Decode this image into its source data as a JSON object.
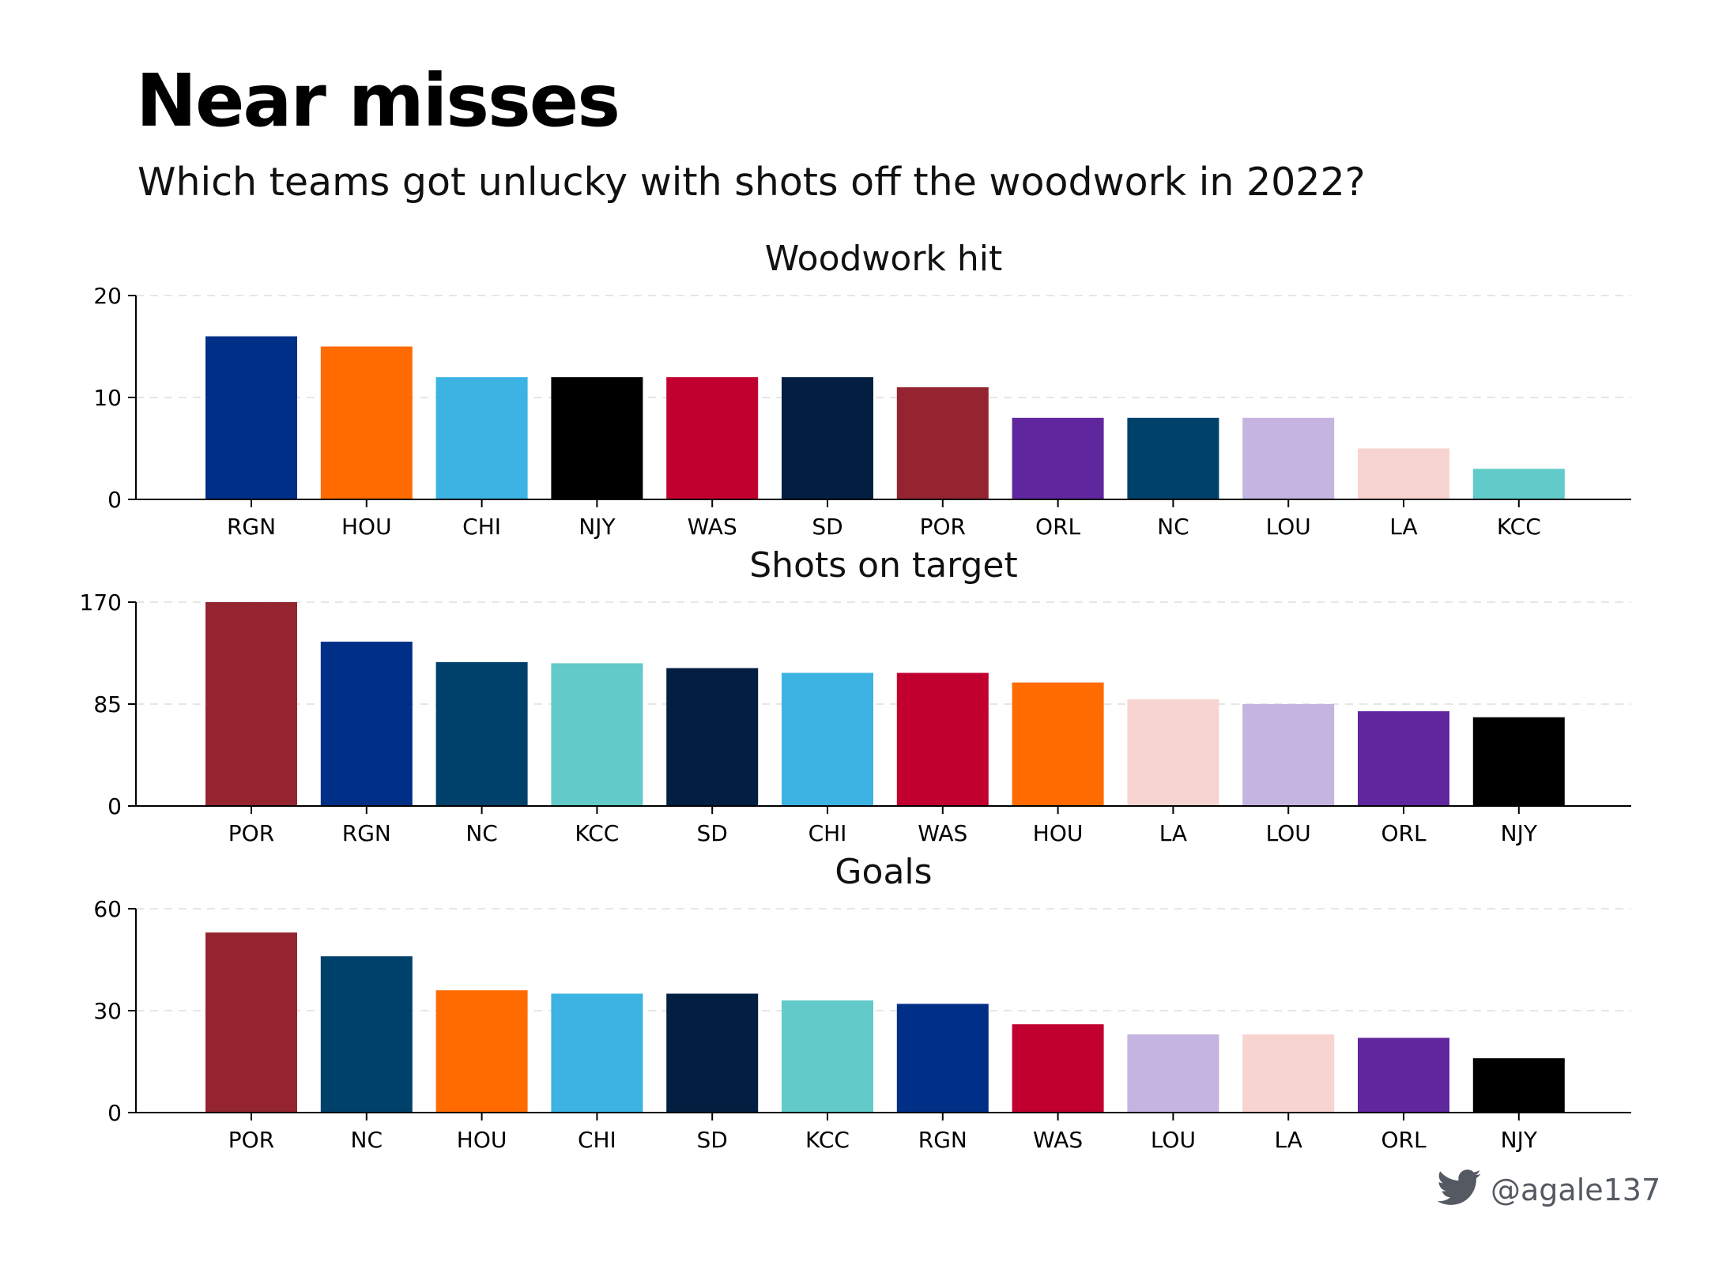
{
  "header": {
    "title": "Near misses",
    "subtitle": "Which teams got unlucky with shots off the woodwork in 2022?"
  },
  "credit": {
    "icon": "twitter-bird-icon",
    "handle": "@agale137"
  },
  "team_colors": {
    "RGN": "#002F87",
    "HOU": "#FF6B00",
    "CHI": "#3CB3E3",
    "NJY": "#000000",
    "WAS": "#C20030",
    "SD": "#021F41",
    "POR": "#942530",
    "ORL": "#60269E",
    "NC": "#00416B",
    "LOU": "#C5B3E0",
    "LA": "#F7D4CF",
    "KCC": "#62CAC8"
  },
  "chart_data": [
    {
      "type": "bar",
      "title": "Woodwork hit",
      "categories": [
        "RGN",
        "HOU",
        "CHI",
        "NJY",
        "WAS",
        "SD",
        "POR",
        "ORL",
        "NC",
        "LOU",
        "LA",
        "KCC"
      ],
      "values": [
        16,
        15,
        12,
        12,
        12,
        12,
        11,
        8,
        8,
        8,
        5,
        3
      ],
      "xlabel": "",
      "ylabel": "",
      "ylim": [
        0,
        20
      ],
      "yticks": [
        0,
        10,
        20
      ],
      "grid": true
    },
    {
      "type": "bar",
      "title": "Shots on target",
      "categories": [
        "POR",
        "RGN",
        "NC",
        "KCC",
        "SD",
        "CHI",
        "WAS",
        "HOU",
        "LA",
        "LOU",
        "ORL",
        "NJY"
      ],
      "values": [
        170,
        137,
        120,
        119,
        115,
        111,
        111,
        103,
        89,
        85,
        79,
        74
      ],
      "xlabel": "",
      "ylabel": "",
      "ylim": [
        0,
        170
      ],
      "yticks": [
        0,
        85,
        170
      ],
      "grid": true
    },
    {
      "type": "bar",
      "title": "Goals",
      "categories": [
        "POR",
        "NC",
        "HOU",
        "CHI",
        "SD",
        "KCC",
        "RGN",
        "WAS",
        "LOU",
        "LA",
        "ORL",
        "NJY"
      ],
      "values": [
        53,
        46,
        36,
        35,
        35,
        33,
        32,
        26,
        23,
        23,
        22,
        16
      ],
      "xlabel": "",
      "ylabel": "",
      "ylim": [
        0,
        60
      ],
      "yticks": [
        0,
        30,
        60
      ],
      "grid": true
    }
  ]
}
